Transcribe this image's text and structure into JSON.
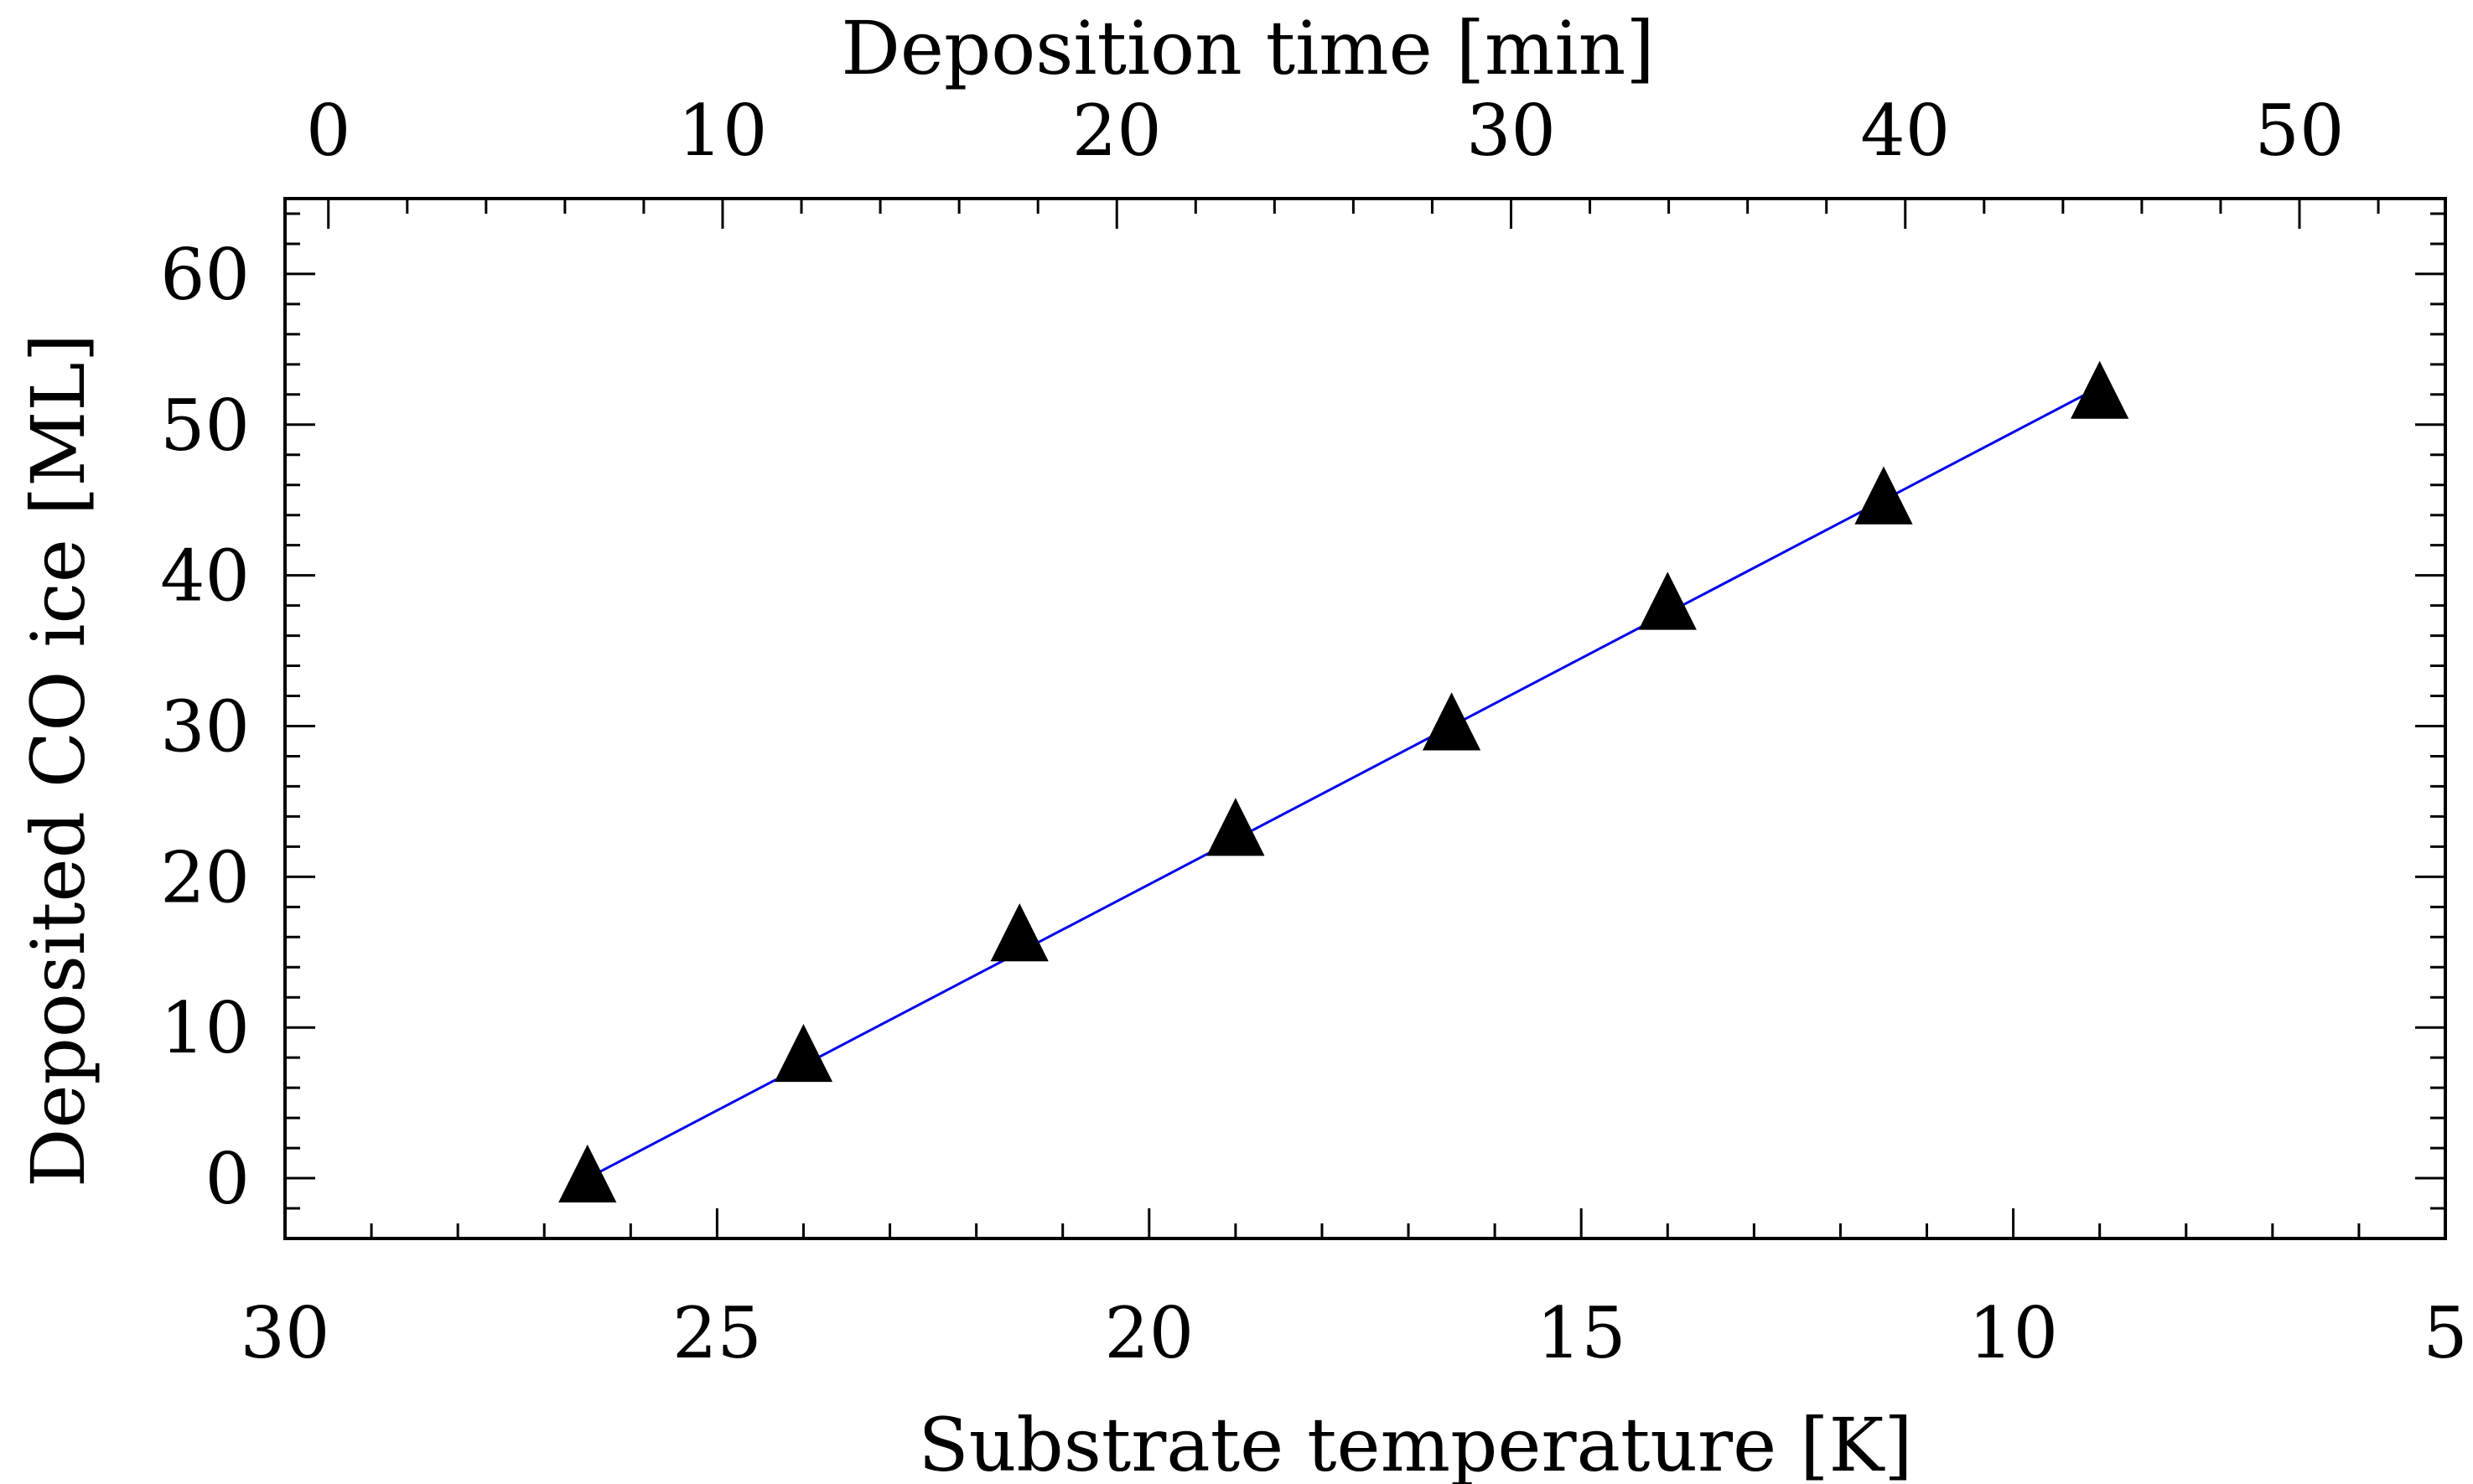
{
  "chart_data": {
    "type": "scatter",
    "title": "",
    "xlabel": "Substrate temperature [K]",
    "x2label": "Deposition time [min]",
    "ylabel": "Deposited CO ice [ML]",
    "xlim": [
      30,
      5
    ],
    "x2lim": [
      -1.1,
      53.7
    ],
    "ylim": [
      -4,
      65
    ],
    "x_ticks": [
      30,
      25,
      20,
      15,
      10,
      5
    ],
    "x2_ticks": [
      0,
      10,
      20,
      30,
      40,
      50
    ],
    "y_ticks": [
      0,
      10,
      20,
      30,
      40,
      50,
      60
    ],
    "grid": false,
    "series": [
      {
        "marker": "filled-triangle",
        "color": "#000000",
        "x": [
          26.5,
          24.0,
          21.5,
          19.0,
          16.5,
          14.0,
          11.5,
          9.0
        ],
        "y": [
          0,
          8,
          16,
          23,
          30,
          38,
          45,
          52
        ]
      },
      {
        "type": "line",
        "color": "#0000ee",
        "x": [
          26.5,
          9.0
        ],
        "y": [
          0,
          52.5
        ]
      }
    ]
  }
}
